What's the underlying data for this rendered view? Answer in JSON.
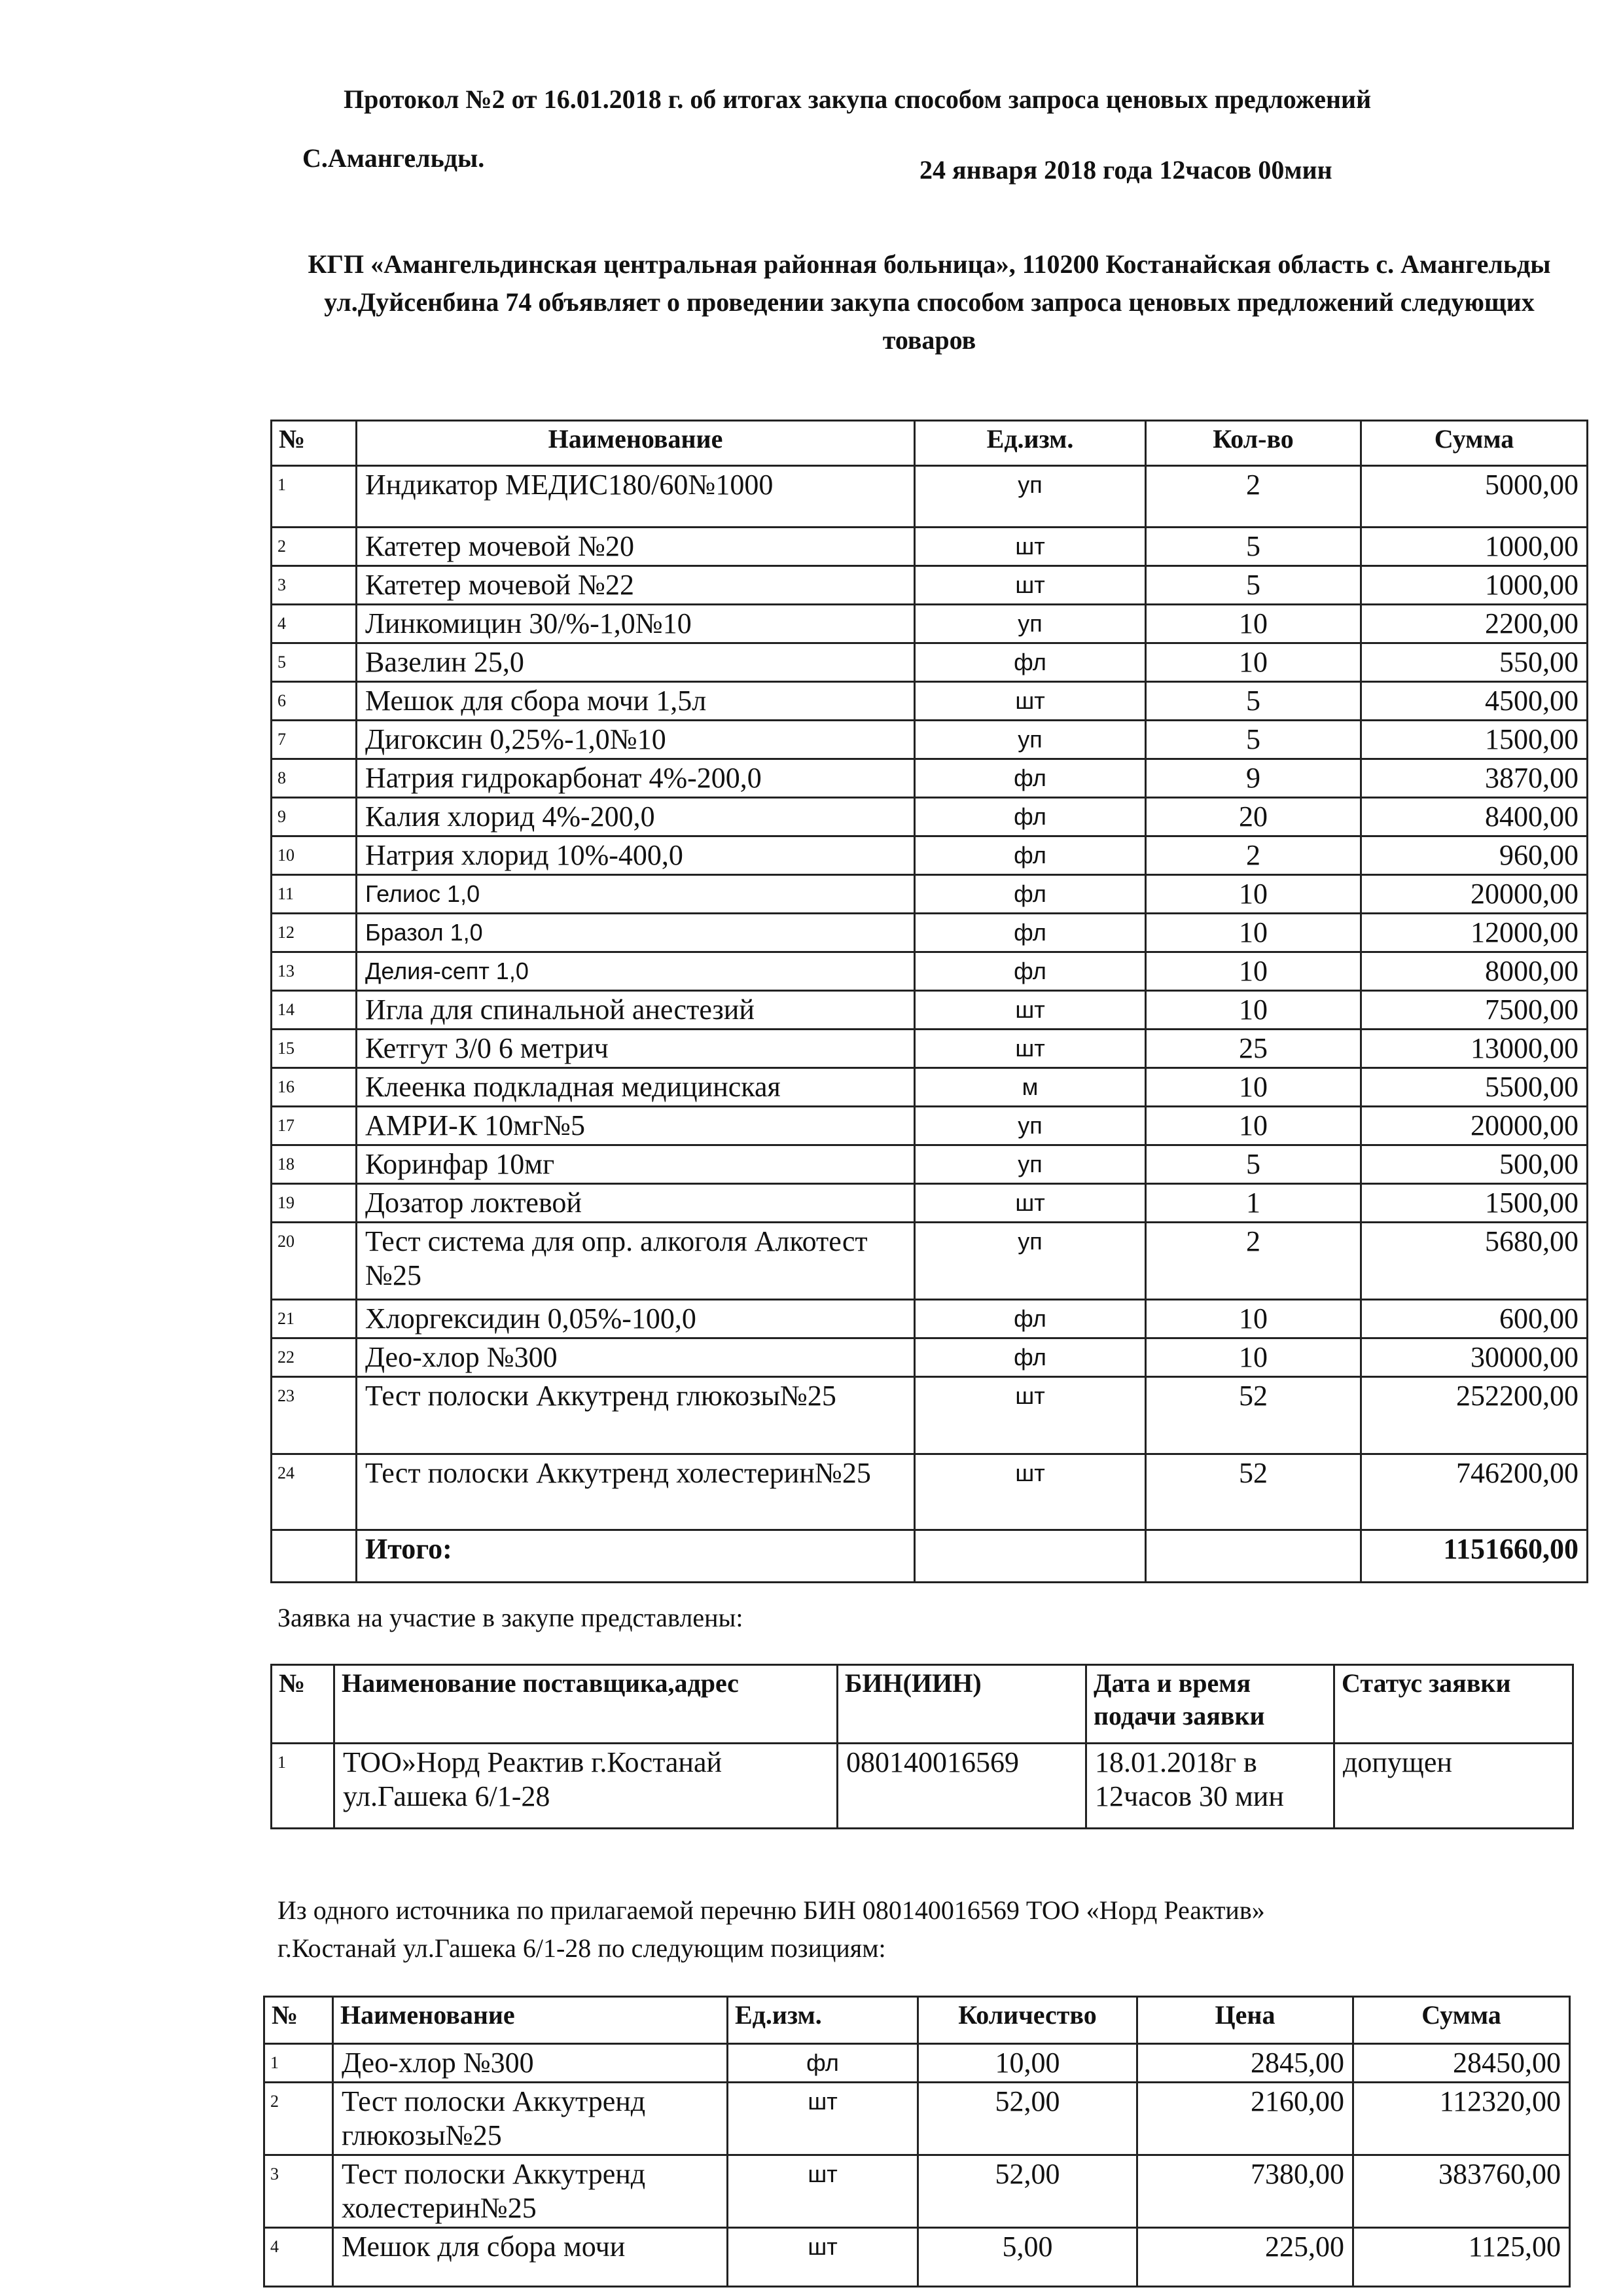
{
  "header": {
    "title": "Протокол №2 от 16.01.2018 г. об итогах закупа способом запроса ценовых предложений",
    "city": "С.Амангельды.",
    "datetime": "24 января 2018 года 12часов 00мин",
    "announcement": "КГП «Амангельдинская центральная районная больница», 110200 Костанайская область  с. Амангельды ул.Дуйсенбина 74 объявляет о проведении закупа способом запроса ценовых предложений следующих товаров"
  },
  "goods_table": {
    "columns": [
      "№",
      "Наименование",
      "Ед.изм.",
      "Кол-во",
      "Сумма"
    ],
    "rows": [
      [
        "1",
        "Индикатор МЕДИС180/60№1000",
        "уп",
        "2",
        "5000,00"
      ],
      [
        "2",
        "Катетер мочевой №20",
        "шт",
        "5",
        "1000,00"
      ],
      [
        "3",
        "Катетер мочевой №22",
        "шт",
        "5",
        "1000,00"
      ],
      [
        "4",
        "Линкомицин 30/%-1,0№10",
        "уп",
        "10",
        "2200,00"
      ],
      [
        "5",
        "Вазелин 25,0",
        "фл",
        "10",
        "550,00"
      ],
      [
        "6",
        "Мешок для сбора мочи 1,5л",
        "шт",
        "5",
        "4500,00"
      ],
      [
        "7",
        "Дигоксин 0,25%-1,0№10",
        "уп",
        "5",
        "1500,00"
      ],
      [
        "8",
        "Натрия гидрокарбонат 4%-200,0",
        "фл",
        "9",
        "3870,00"
      ],
      [
        "9",
        "Калия хлорид 4%-200,0",
        "фл",
        "20",
        "8400,00"
      ],
      [
        "10",
        "Натрия хлорид 10%-400,0",
        "фл",
        "2",
        "960,00"
      ],
      [
        "11",
        "Гелиос 1,0",
        "фл",
        "10",
        "20000,00"
      ],
      [
        "12",
        "Бразол 1,0",
        "фл",
        "10",
        "12000,00"
      ],
      [
        "13",
        "Делия-септ 1,0",
        "фл",
        "10",
        "8000,00"
      ],
      [
        "14",
        "Игла для спинальной анестезий",
        "шт",
        "10",
        "7500,00"
      ],
      [
        "15",
        "Кетгут 3/0 6 метрич",
        "шт",
        "25",
        "13000,00"
      ],
      [
        "16",
        "Клеенка подкладная медицинская",
        "м",
        "10",
        "5500,00"
      ],
      [
        "17",
        "АМРИ-К 10мг№5",
        "уп",
        "10",
        "20000,00"
      ],
      [
        "18",
        "Коринфар 10мг",
        "уп",
        "5",
        "500,00"
      ],
      [
        "19",
        "Дозатор локтевой",
        "шт",
        "1",
        "1500,00"
      ],
      [
        "20",
        "Тест система  для опр. алкоголя Алкотест №25",
        "уп",
        "2",
        "5680,00"
      ],
      [
        "21",
        "Хлоргексидин 0,05%-100,0",
        "фл",
        "10",
        "600,00"
      ],
      [
        "22",
        "Део-хлор №300",
        "фл",
        "10",
        "30000,00"
      ],
      [
        "23",
        "Тест полоски Аккутренд глюкозы№25",
        "шт",
        "52",
        "252200,00"
      ],
      [
        "24",
        "Тест полоски Аккутренд холестерин№25",
        "шт",
        "52",
        "746200,00"
      ]
    ],
    "total_label": "Итого:",
    "total_value": "1151660,00"
  },
  "applications": {
    "caption": "Заявка на участие в закупе представлены:",
    "columns": [
      "№",
      "Наименование поставщика,адрес",
      "БИН(ИИН)",
      "Дата и время подачи заявки",
      "Статус заявки"
    ],
    "rows": [
      [
        "1",
        "ТОО»Норд Реактив г.Костанай ул.Гашека 6/1-28",
        "080140016569",
        "18.01.2018г в 12часов 30 мин",
        "допущен"
      ]
    ]
  },
  "single_source": {
    "caption_line1": "Из одного источника по прилагаемой перечню БИН 080140016569 ТОО «Норд Реактив»",
    "caption_line2": "г.Костанай ул.Гашека 6/1-28 по следующим позициям:",
    "columns": [
      "№",
      "Наименование",
      "Ед.изм.",
      "Количество",
      "Цена",
      "Сумма"
    ],
    "rows": [
      [
        "1",
        "Део-хлор №300",
        "фл",
        "10,00",
        "2845,00",
        "28450,00"
      ],
      [
        "2",
        "Тест полоски Аккутренд глюкозы№25",
        "шт",
        "52,00",
        "2160,00",
        "112320,00"
      ],
      [
        "3",
        "Тест полоски Аккутренд холестерин№25",
        "шт",
        "52,00",
        "7380,00",
        "383760,00"
      ],
      [
        "4",
        "Мешок для сбора мочи",
        "шт",
        "5,00",
        "225,00",
        "1125,00"
      ]
    ]
  }
}
